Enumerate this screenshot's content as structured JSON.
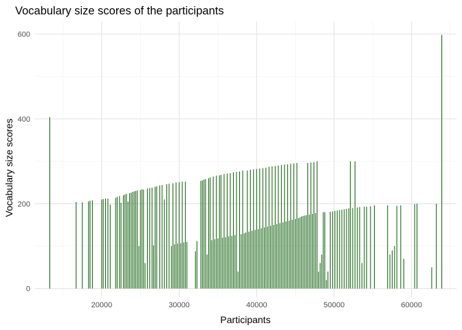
{
  "chart_data": {
    "type": "bar",
    "title": "Vocabulary size scores of the participants",
    "xlabel": "Participants",
    "ylabel": "Vocabulary size scores",
    "xlim": [
      11400,
      65800
    ],
    "ylim": [
      -20,
      630
    ],
    "x_ticks": [
      20000,
      30000,
      40000,
      50000,
      60000
    ],
    "y_ticks": [
      0,
      200,
      400,
      600
    ],
    "grid": true,
    "legend": "none",
    "bar_color": "#1a6616",
    "bars": [
      [
        13300,
        404
      ],
      [
        16700,
        204
      ],
      [
        17500,
        203
      ],
      [
        18300,
        205
      ],
      [
        18500,
        207
      ],
      [
        18800,
        208
      ],
      [
        20000,
        210
      ],
      [
        20200,
        211
      ],
      [
        20500,
        212
      ],
      [
        20800,
        212
      ],
      [
        21100,
        198
      ],
      [
        21800,
        214
      ],
      [
        22000,
        216
      ],
      [
        22300,
        218
      ],
      [
        22500,
        202
      ],
      [
        22800,
        220
      ],
      [
        23000,
        222
      ],
      [
        23200,
        223
      ],
      [
        23400,
        205
      ],
      [
        23600,
        225
      ],
      [
        23800,
        226
      ],
      [
        24000,
        228
      ],
      [
        24200,
        229
      ],
      [
        24400,
        230
      ],
      [
        24600,
        231
      ],
      [
        24800,
        100
      ],
      [
        25000,
        232
      ],
      [
        25200,
        234
      ],
      [
        25400,
        233
      ],
      [
        25600,
        60
      ],
      [
        25900,
        236
      ],
      [
        26200,
        237
      ],
      [
        26500,
        238
      ],
      [
        26700,
        102
      ],
      [
        26900,
        240
      ],
      [
        27100,
        241
      ],
      [
        27500,
        243
      ],
      [
        27800,
        244
      ],
      [
        28100,
        210
      ],
      [
        28400,
        246
      ],
      [
        28700,
        247
      ],
      [
        29000,
        100
      ],
      [
        29200,
        248
      ],
      [
        29400,
        104
      ],
      [
        29600,
        250
      ],
      [
        29800,
        106
      ],
      [
        30000,
        251
      ],
      [
        30200,
        107
      ],
      [
        30400,
        252
      ],
      [
        30600,
        109
      ],
      [
        30800,
        252
      ],
      [
        31000,
        110
      ],
      [
        32100,
        88
      ],
      [
        32300,
        112
      ],
      [
        32800,
        254
      ],
      [
        33000,
        255
      ],
      [
        33200,
        257
      ],
      [
        33400,
        258
      ],
      [
        33600,
        80
      ],
      [
        33800,
        260
      ],
      [
        34000,
        262
      ],
      [
        34200,
        114
      ],
      [
        34400,
        264
      ],
      [
        34600,
        116
      ],
      [
        34800,
        266
      ],
      [
        35000,
        118
      ],
      [
        35200,
        267
      ],
      [
        35400,
        268
      ],
      [
        35600,
        120
      ],
      [
        35800,
        270
      ],
      [
        36000,
        121
      ],
      [
        36200,
        271
      ],
      [
        36400,
        123
      ],
      [
        36600,
        272
      ],
      [
        36800,
        124
      ],
      [
        37000,
        274
      ],
      [
        37200,
        126
      ],
      [
        37400,
        275
      ],
      [
        37600,
        40
      ],
      [
        37800,
        276
      ],
      [
        38000,
        128
      ],
      [
        38200,
        278
      ],
      [
        38400,
        130
      ],
      [
        38600,
        132
      ],
      [
        38800,
        278
      ],
      [
        39000,
        134
      ],
      [
        39200,
        280
      ],
      [
        39400,
        136
      ],
      [
        39600,
        281
      ],
      [
        39800,
        138
      ],
      [
        40000,
        282
      ],
      [
        40200,
        140
      ],
      [
        40400,
        283
      ],
      [
        40600,
        142
      ],
      [
        40800,
        284
      ],
      [
        41000,
        144
      ],
      [
        41200,
        285
      ],
      [
        41400,
        146
      ],
      [
        41600,
        287
      ],
      [
        41800,
        148
      ],
      [
        42000,
        288
      ],
      [
        42200,
        150
      ],
      [
        42400,
        289
      ],
      [
        42600,
        152
      ],
      [
        42800,
        290
      ],
      [
        43000,
        154
      ],
      [
        43200,
        291
      ],
      [
        43400,
        156
      ],
      [
        43600,
        292
      ],
      [
        43800,
        158
      ],
      [
        44000,
        293
      ],
      [
        44200,
        160
      ],
      [
        44400,
        294
      ],
      [
        44600,
        162
      ],
      [
        44800,
        295
      ],
      [
        45000,
        164
      ],
      [
        45200,
        296
      ],
      [
        45400,
        166
      ],
      [
        45600,
        168
      ],
      [
        45800,
        170
      ],
      [
        46000,
        171
      ],
      [
        46200,
        172
      ],
      [
        46400,
        173
      ],
      [
        46600,
        296
      ],
      [
        46800,
        174
      ],
      [
        47000,
        297
      ],
      [
        47200,
        176
      ],
      [
        47400,
        298
      ],
      [
        47600,
        178
      ],
      [
        47800,
        300
      ],
      [
        48000,
        40
      ],
      [
        48200,
        60
      ],
      [
        48400,
        80
      ],
      [
        48600,
        180
      ],
      [
        48800,
        180
      ],
      [
        49000,
        20
      ],
      [
        49200,
        40
      ],
      [
        49500,
        181
      ],
      [
        49800,
        182
      ],
      [
        50100,
        183
      ],
      [
        50400,
        184
      ],
      [
        50700,
        185
      ],
      [
        51000,
        186
      ],
      [
        51300,
        187
      ],
      [
        51600,
        188
      ],
      [
        51900,
        189
      ],
      [
        52100,
        300
      ],
      [
        52400,
        190
      ],
      [
        52700,
        300
      ],
      [
        53000,
        191
      ],
      [
        53300,
        192
      ],
      [
        53600,
        60
      ],
      [
        53900,
        193
      ],
      [
        54200,
        193
      ],
      [
        54700,
        194
      ],
      [
        55200,
        196
      ],
      [
        56900,
        196
      ],
      [
        57200,
        80
      ],
      [
        57500,
        90
      ],
      [
        57800,
        100
      ],
      [
        58100,
        195
      ],
      [
        58600,
        196
      ],
      [
        59000,
        70
      ],
      [
        60400,
        199
      ],
      [
        60700,
        200
      ],
      [
        62600,
        50
      ],
      [
        63200,
        200
      ],
      [
        63900,
        598
      ]
    ]
  }
}
